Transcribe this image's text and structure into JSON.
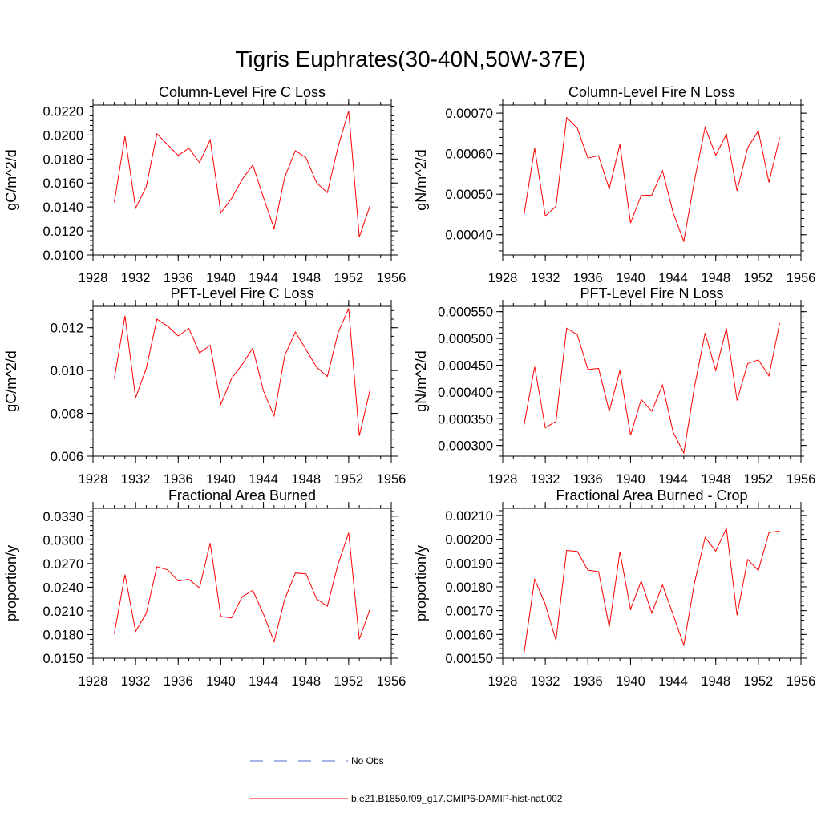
{
  "figure": {
    "title": "Tigris Euphrates(30-40N,50W-37E)"
  },
  "legend": {
    "placement": "bottom-center",
    "entries": [
      {
        "label": "No Obs",
        "color": "#4a6fd0",
        "style": "dashed"
      },
      {
        "label": "b.e21.B1850.f09_g17.CMIP6-DAMIP-hist-nat.002",
        "color": "#ff0000",
        "style": "solid"
      }
    ]
  },
  "chart_data": [
    {
      "type": "line",
      "title": "Column-Level Fire C Loss",
      "xlabel": "",
      "ylabel": "gC/m^2/d",
      "xlim": [
        1928,
        1956
      ],
      "ylim": [
        0.01,
        0.0225
      ],
      "xticks": [
        "1928",
        "1932",
        "1936",
        "1940",
        "1944",
        "1948",
        "1952",
        "1956"
      ],
      "yticks": [
        "0.0100",
        "0.0120",
        "0.0140",
        "0.0160",
        "0.0180",
        "0.0200",
        "0.0220"
      ],
      "x": [
        1930,
        1931,
        1932,
        1933,
        1934,
        1935,
        1936,
        1937,
        1938,
        1939,
        1940,
        1941,
        1942,
        1943,
        1944,
        1945,
        1946,
        1947,
        1948,
        1949,
        1950,
        1951,
        1952,
        1953,
        1954
      ],
      "series": [
        {
          "color": "#ff0000",
          "values": [
            0.0144,
            0.0199,
            0.0139,
            0.0157,
            0.0201,
            0.0192,
            0.0183,
            0.0189,
            0.0177,
            0.0196,
            0.0135,
            0.0147,
            0.0163,
            0.0175,
            0.0148,
            0.0122,
            0.0165,
            0.0187,
            0.0181,
            0.016,
            0.0152,
            0.019,
            0.022,
            0.0115,
            0.0141
          ]
        }
      ]
    },
    {
      "type": "line",
      "title": "Column-Level Fire N Loss",
      "xlabel": "",
      "ylabel": "gN/m^2/d",
      "xlim": [
        1928,
        1956
      ],
      "ylim": [
        0.00035,
        0.00072
      ],
      "xticks": [
        "1928",
        "1932",
        "1936",
        "1940",
        "1944",
        "1948",
        "1952",
        "1956"
      ],
      "yticks": [
        "0.00040",
        "0.00050",
        "0.00060",
        "0.00070"
      ],
      "x": [
        1930,
        1931,
        1932,
        1933,
        1934,
        1935,
        1936,
        1937,
        1938,
        1939,
        1940,
        1941,
        1942,
        1943,
        1944,
        1945,
        1946,
        1947,
        1948,
        1949,
        1950,
        1951,
        1952,
        1953,
        1954
      ],
      "series": [
        {
          "color": "#ff0000",
          "values": [
            0.000449,
            0.000614,
            0.000446,
            0.00047,
            0.000689,
            0.000663,
            0.000589,
            0.000595,
            0.000513,
            0.000623,
            0.000429,
            0.000497,
            0.000498,
            0.000558,
            0.000454,
            0.000384,
            0.000533,
            0.000665,
            0.000596,
            0.000648,
            0.000508,
            0.000615,
            0.000656,
            0.000529,
            0.00064
          ]
        }
      ]
    },
    {
      "type": "line",
      "title": "PFT-Level Fire C Loss",
      "xlabel": "",
      "ylabel": "gC/m^2/d",
      "xlim": [
        1928,
        1956
      ],
      "ylim": [
        0.006,
        0.013
      ],
      "xticks": [
        "1928",
        "1932",
        "1936",
        "1940",
        "1944",
        "1948",
        "1952",
        "1956"
      ],
      "yticks": [
        "0.006",
        "0.008",
        "0.010",
        "0.012"
      ],
      "x": [
        1930,
        1931,
        1932,
        1933,
        1934,
        1935,
        1936,
        1937,
        1938,
        1939,
        1940,
        1941,
        1942,
        1943,
        1944,
        1945,
        1946,
        1947,
        1948,
        1949,
        1950,
        1951,
        1952,
        1953,
        1954
      ],
      "series": [
        {
          "color": "#ff0000",
          "values": [
            0.00962,
            0.01255,
            0.00872,
            0.0101,
            0.0124,
            0.01208,
            0.01162,
            0.01197,
            0.01082,
            0.01118,
            0.00842,
            0.00962,
            0.01028,
            0.01105,
            0.00905,
            0.00788,
            0.0107,
            0.0118,
            0.01098,
            0.01015,
            0.00972,
            0.01176,
            0.0129,
            0.00695,
            0.00908
          ]
        }
      ]
    },
    {
      "type": "line",
      "title": "PFT-Level Fire N Loss",
      "xlabel": "",
      "ylabel": "gN/m^2/d",
      "xlim": [
        1928,
        1956
      ],
      "ylim": [
        0.00028,
        0.00056
      ],
      "xticks": [
        "1928",
        "1932",
        "1936",
        "1940",
        "1944",
        "1948",
        "1952",
        "1956"
      ],
      "yticks": [
        "0.000300",
        "0.000350",
        "0.000400",
        "0.000450",
        "0.000500",
        "0.000550"
      ],
      "x": [
        1930,
        1931,
        1932,
        1933,
        1934,
        1935,
        1936,
        1937,
        1938,
        1939,
        1940,
        1941,
        1942,
        1943,
        1944,
        1945,
        1946,
        1947,
        1948,
        1949,
        1950,
        1951,
        1952,
        1953,
        1954
      ],
      "series": [
        {
          "color": "#ff0000",
          "values": [
            0.000338,
            0.000447,
            0.000333,
            0.000345,
            0.000519,
            0.000507,
            0.000442,
            0.000444,
            0.000364,
            0.00044,
            0.000319,
            0.000386,
            0.000364,
            0.000413,
            0.000325,
            0.000286,
            0.000409,
            0.00051,
            0.00044,
            0.000519,
            0.000384,
            0.000453,
            0.00046,
            0.00043,
            0.000529
          ]
        }
      ]
    },
    {
      "type": "line",
      "title": "Fractional Area Burned",
      "xlabel": "",
      "ylabel": "proportion/y",
      "xlim": [
        1928,
        1956
      ],
      "ylim": [
        0.015,
        0.034
      ],
      "xticks": [
        "1928",
        "1932",
        "1936",
        "1940",
        "1944",
        "1948",
        "1952",
        "1956"
      ],
      "yticks": [
        "0.0150",
        "0.0180",
        "0.0210",
        "0.0240",
        "0.0270",
        "0.0300",
        "0.0330"
      ],
      "x": [
        1930,
        1931,
        1932,
        1933,
        1934,
        1935,
        1936,
        1937,
        1938,
        1939,
        1940,
        1941,
        1942,
        1943,
        1944,
        1945,
        1946,
        1947,
        1948,
        1949,
        1950,
        1951,
        1952,
        1953,
        1954
      ],
      "series": [
        {
          "color": "#ff0000",
          "values": [
            0.0181,
            0.0256,
            0.0184,
            0.0207,
            0.0266,
            0.0262,
            0.0248,
            0.025,
            0.0239,
            0.0296,
            0.0203,
            0.0201,
            0.0228,
            0.0236,
            0.0206,
            0.0171,
            0.0225,
            0.0258,
            0.0257,
            0.0225,
            0.0216,
            0.0269,
            0.0309,
            0.0174,
            0.0212
          ]
        }
      ]
    },
    {
      "type": "line",
      "title": "Fractional Area Burned - Crop",
      "xlabel": "",
      "ylabel": "proportion/y",
      "xlim": [
        1928,
        1956
      ],
      "ylim": [
        0.0015,
        0.00213
      ],
      "xticks": [
        "1928",
        "1932",
        "1936",
        "1940",
        "1944",
        "1948",
        "1952",
        "1956"
      ],
      "yticks": [
        "0.00150",
        "0.00160",
        "0.00170",
        "0.00180",
        "0.00190",
        "0.00200",
        "0.00210"
      ],
      "x": [
        1930,
        1931,
        1932,
        1933,
        1934,
        1935,
        1936,
        1937,
        1938,
        1939,
        1940,
        1941,
        1942,
        1943,
        1944,
        1945,
        1946,
        1947,
        1948,
        1949,
        1950,
        1951,
        1952,
        1953,
        1954
      ],
      "series": [
        {
          "color": "#ff0000",
          "values": [
            0.00152,
            0.001832,
            0.001727,
            0.001575,
            0.001953,
            0.001949,
            0.00187,
            0.001864,
            0.001631,
            0.001947,
            0.001706,
            0.001824,
            0.00169,
            0.001808,
            0.001683,
            0.001555,
            0.001816,
            0.002008,
            0.00195,
            0.002046,
            0.001681,
            0.001915,
            0.001869,
            0.002028,
            0.002035
          ]
        }
      ]
    }
  ]
}
